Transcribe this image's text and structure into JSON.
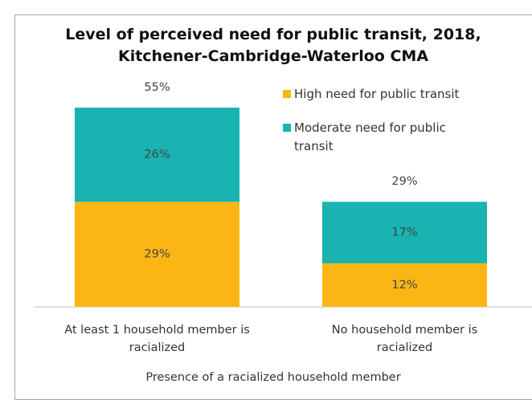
{
  "chart_data": {
    "type": "stacked_bar",
    "title": "Level of perceived need for public transit, 2018, Kitchener-Cambridge-Waterloo CMA",
    "categories": [
      "At least 1 household member is racialized",
      "No household member is racialized"
    ],
    "x_label": "Presence of a racialized household member",
    "series": [
      {
        "name": "High need for public transit",
        "color": "#fbb614",
        "values": [
          29,
          12
        ],
        "value_labels": [
          "29%",
          "12%"
        ]
      },
      {
        "name": "Moderate need for public transit",
        "color": "#19b3b1",
        "values": [
          26,
          17
        ],
        "value_labels": [
          "26%",
          "17%"
        ]
      }
    ],
    "totals": [
      55,
      29
    ],
    "total_labels": [
      "55%",
      "29%"
    ]
  }
}
